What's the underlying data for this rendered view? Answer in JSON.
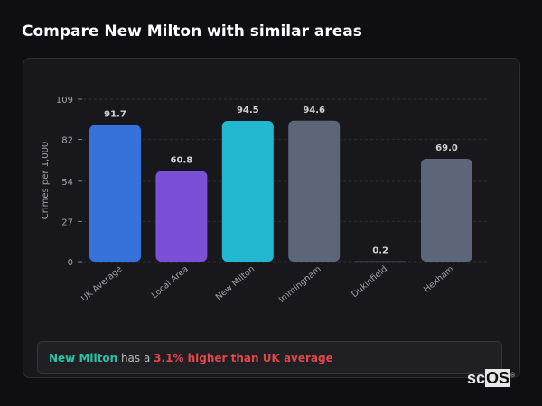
{
  "title": "Compare New Milton with similar areas",
  "chart_data": {
    "type": "bar",
    "categories": [
      "UK Average",
      "Local Area",
      "New Milton",
      "Immingham",
      "Dukinfield",
      "Hexham"
    ],
    "values": [
      91.7,
      60.8,
      94.5,
      94.6,
      0.2,
      69.0
    ],
    "value_labels": [
      "91.7",
      "60.8",
      "94.5",
      "94.6",
      "0.2",
      "69.0"
    ],
    "colors": [
      "#3572d9",
      "#7b4fd6",
      "#22b8cf",
      "#5d6678",
      "#5d6678",
      "#5d6678"
    ],
    "ylabel": "Crimes per 1,000",
    "xlabel": "",
    "yticks": [
      "0",
      "27",
      "54",
      "82",
      "109"
    ],
    "ylim": [
      0,
      109
    ],
    "grid": true,
    "legend": "none"
  },
  "summary": {
    "area": "New Milton",
    "middle": " has a ",
    "comparison": "3.1% higher than UK average"
  },
  "logo": {
    "text_a": "sc",
    "text_b": "OS",
    "mark": "®"
  }
}
